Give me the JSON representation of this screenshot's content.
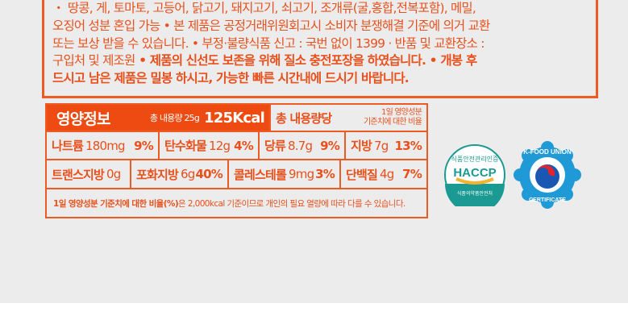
{
  "notice": {
    "line1": "・ 땅콩, 게, 토마토, 고등어, 닭고기, 돼지고기, 쇠고기, 조개류(굴,홍합,전복포함), 메밀,",
    "line2": "오징어 성분 혼입 가능 • 본 제품은 공정거래위원회고시 소비자 분쟁해결 기준에 의거 교환",
    "line3": "또는 보상 받을 수 있습니다. • 부정·불량식품 신고 : 국번 없이 1399 · 반품 및 교환장소 :",
    "line4_plain": "구입처 및 제조원",
    "line4_bold": " • 제품의 신선도 보존을 위해 질소 충전포장을 하였습니다. • 개봉 후",
    "line5": "드시고 남은 제품은 밀봉 하시고, 가능한 빠른 시간내에 드시기 바랍니다."
  },
  "nutrition": {
    "title": "영양정보",
    "total_label": "총 내용량 25g",
    "kcal": "125Kcal",
    "per_total": "총 내용량당",
    "daily_ratio_line1": "1일 영양성분",
    "daily_ratio_line2": "기준치에 대한 비율",
    "row1": [
      {
        "name": "나트륨",
        "amount": "180mg",
        "percent": "9%"
      },
      {
        "name": "탄수화물",
        "amount": "12g",
        "percent": "4%"
      },
      {
        "name": "당류",
        "amount": "8.7g",
        "percent": "9%"
      },
      {
        "name": "지방",
        "amount": "7g",
        "percent": "13%"
      }
    ],
    "row2": [
      {
        "name": "트랜스지방",
        "amount": "0g",
        "percent": ""
      },
      {
        "name": "포화지방",
        "amount": "6g",
        "percent": "40%"
      },
      {
        "name": "콜레스테롤",
        "amount": "9mg",
        "percent": "3%"
      },
      {
        "name": "단백질",
        "amount": "4g",
        "percent": "7%"
      }
    ],
    "footnote_bold": "1일 영양성분 기준치에 대한 비율(%)",
    "footnote_rest": "은 2,000kcal 기준이므로 개인의 필요 열량에 따라 다를 수 있습니다."
  },
  "logos": {
    "haccp_top": "식품안전관리인증",
    "haccp": "HACCP",
    "haccp_bottom": "식품의약품안전처",
    "kfood_top": "K-FOOD UNION",
    "kfood_bottom": "CERTIFICATE"
  },
  "colors": {
    "accent": "#ee4b12",
    "background": "#ececec",
    "haccp_teal": "#1a9a92",
    "kfood_blue": "#1f9ad6"
  }
}
